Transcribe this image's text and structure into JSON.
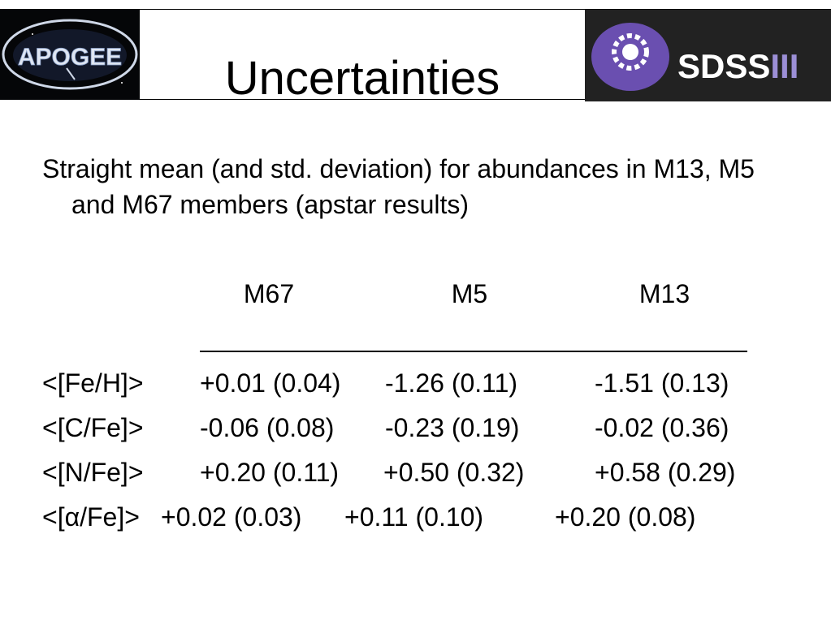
{
  "header": {
    "title": "Uncertainties",
    "apogee_logo": "APOGEE",
    "sdss_logo": "SDSS",
    "sdss_logo_numeral": "III"
  },
  "intro": "Straight mean (and std. deviation) for abundances in M13, M5 and M67 members (apstar results)",
  "table": {
    "columns": [
      "M67",
      "M5",
      "M13"
    ],
    "rows": [
      [
        "<[Fe/H]>",
        "+0.01 (0.04)",
        "-1.26 (0.11)",
        "-1.51 (0.13)"
      ],
      [
        "<[C/Fe]>",
        "-0.06 (0.08)",
        "-0.23 (0.19)",
        "-0.02 (0.36)"
      ],
      [
        "<[N/Fe]>",
        "+0.20 (0.11)",
        "+0.50 (0.32)",
        "+0.58 (0.29)"
      ],
      [
        "<[α/Fe]>",
        "+0.02 (0.03)",
        "+0.11 (0.10)",
        "+0.20 (0.08)"
      ]
    ]
  }
}
